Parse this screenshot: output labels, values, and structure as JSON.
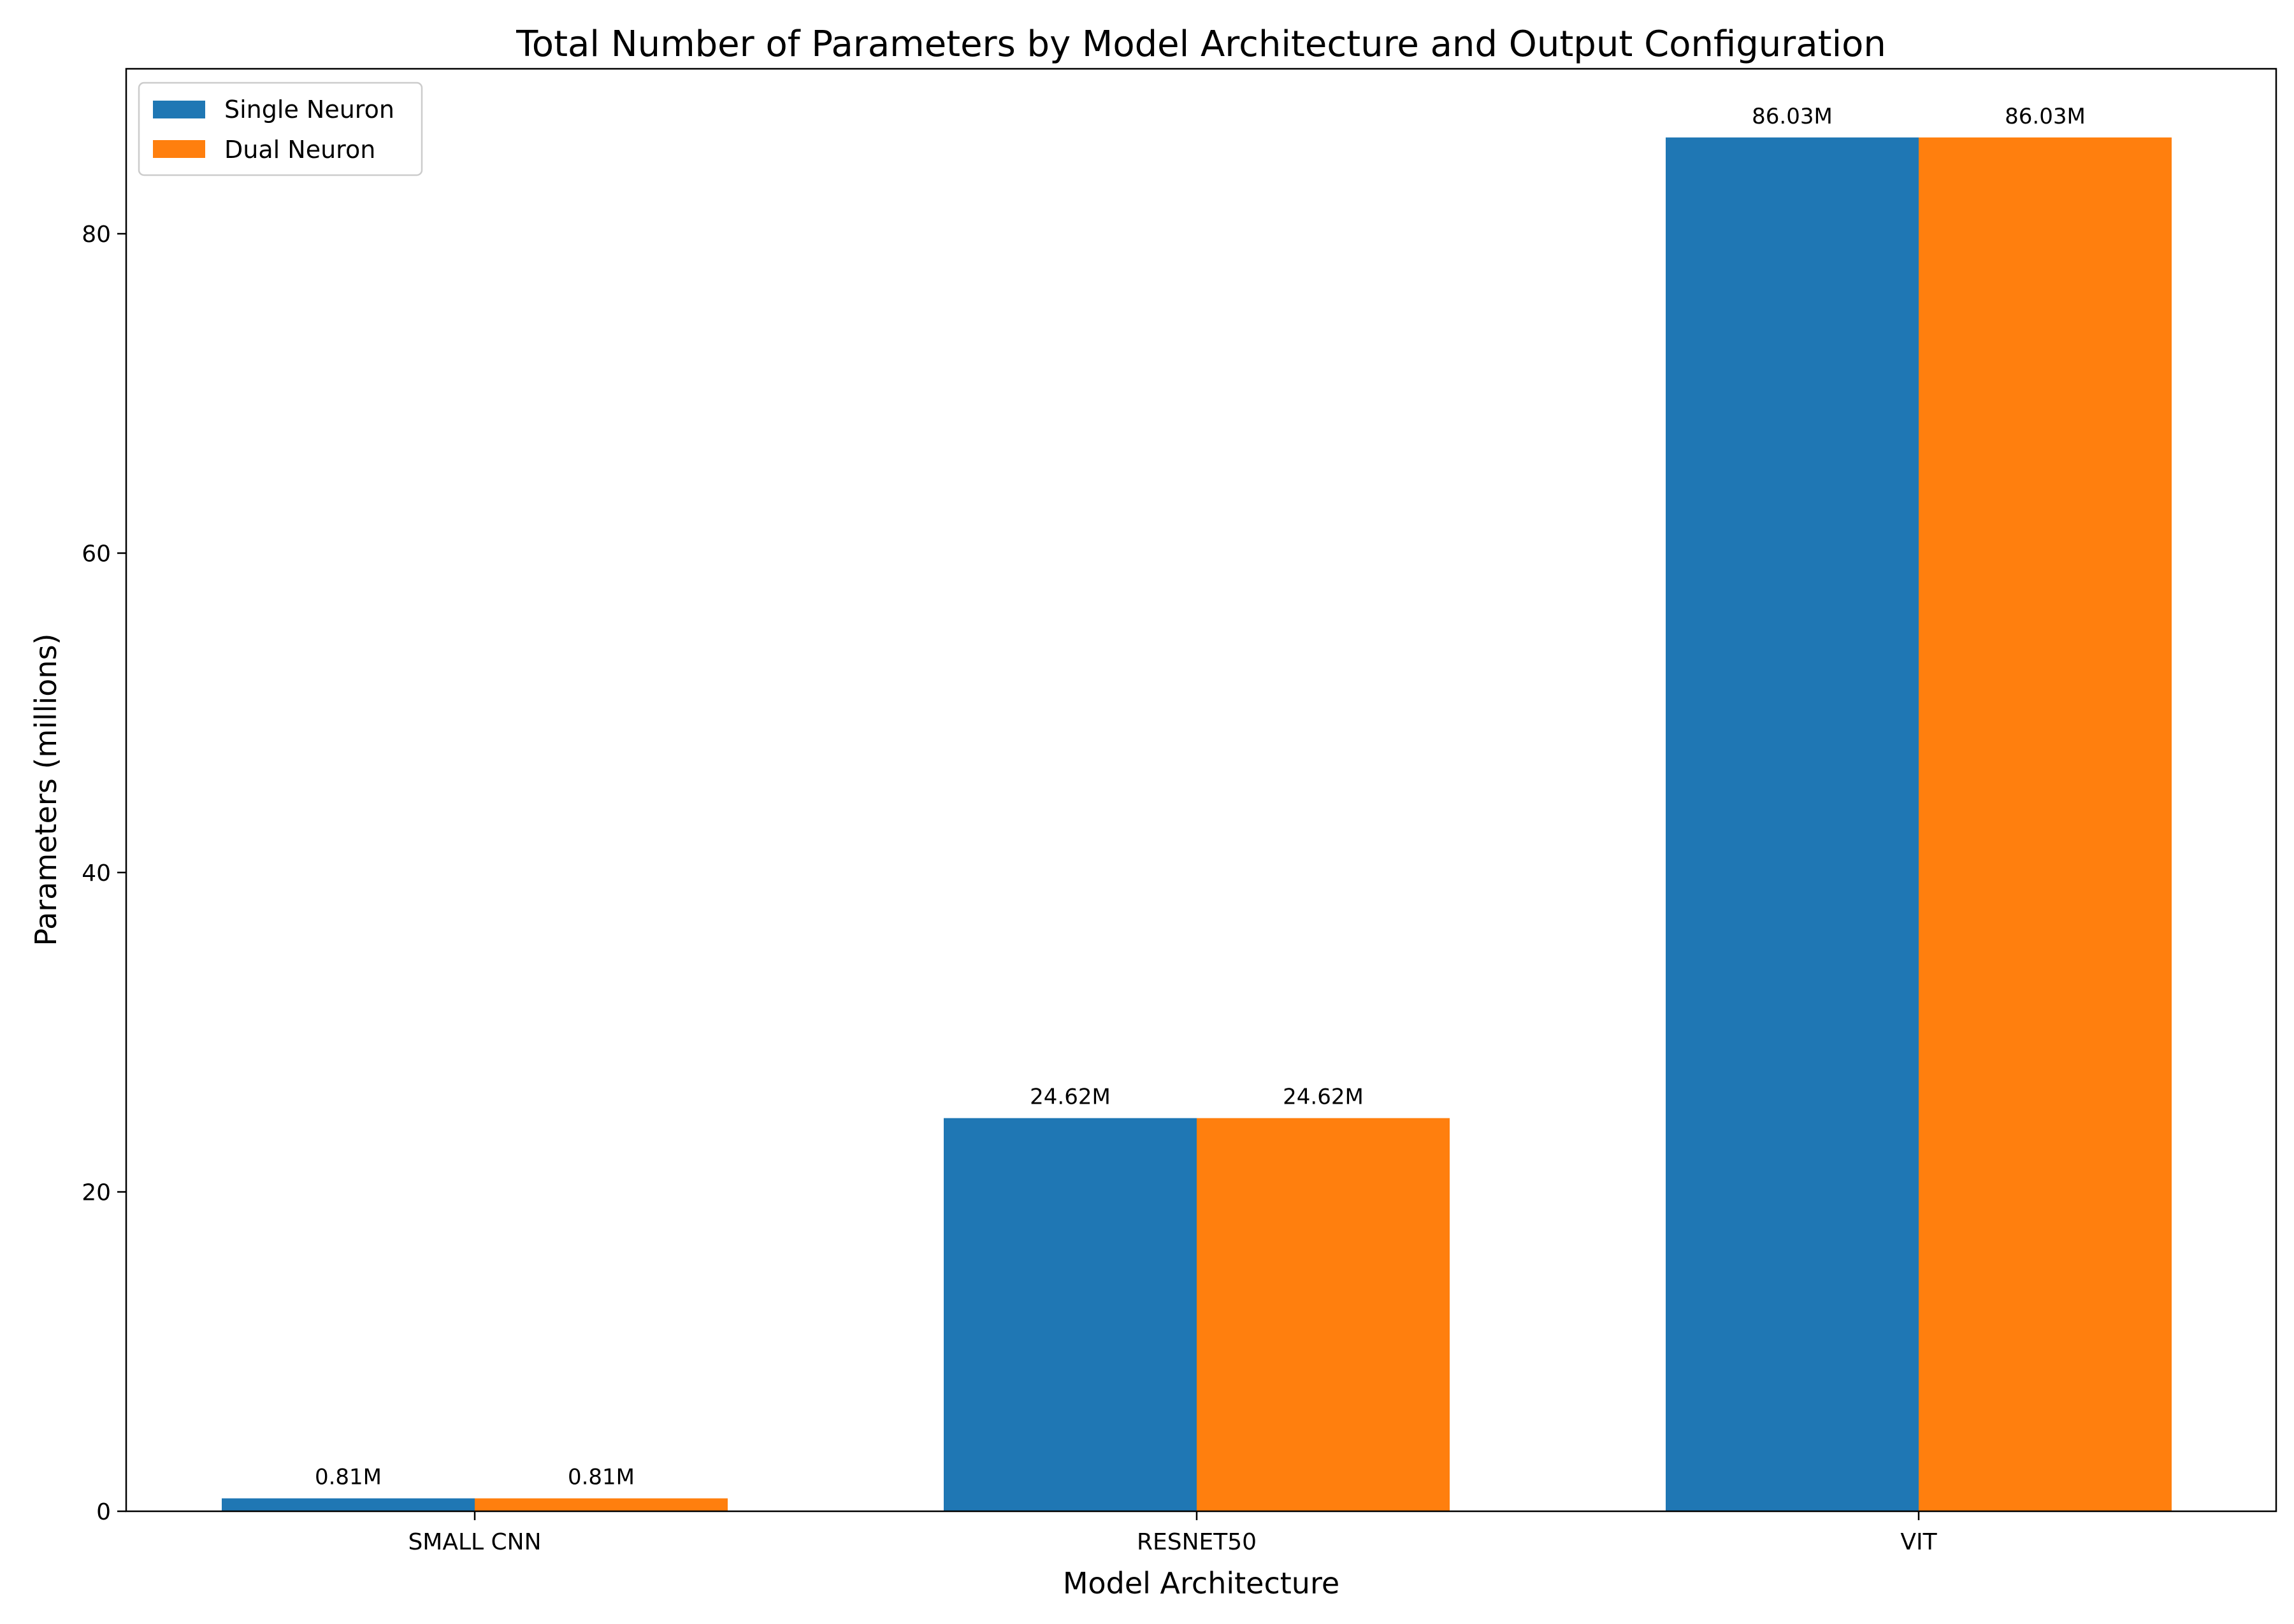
{
  "chart_data": {
    "type": "bar",
    "title": "Total Number of Parameters by Model Architecture and Output Configuration",
    "xlabel": "Model Architecture",
    "ylabel": "Parameters (millions)",
    "categories": [
      "SMALL CNN",
      "RESNET50",
      "VIT"
    ],
    "series": [
      {
        "name": "Single Neuron",
        "color": "#1f77b4",
        "values": [
          0.81,
          24.62,
          86.03
        ],
        "labels": [
          "0.81M",
          "24.62M",
          "86.03M"
        ]
      },
      {
        "name": "Dual Neuron",
        "color": "#ff7f0e",
        "values": [
          0.81,
          24.62,
          86.03
        ],
        "labels": [
          "0.81M",
          "24.62M",
          "86.03M"
        ]
      }
    ],
    "ylim": [
      0,
      90.33
    ],
    "yticks": [
      0,
      20,
      40,
      60,
      80
    ],
    "grid": false,
    "legend_position": "top-left"
  }
}
